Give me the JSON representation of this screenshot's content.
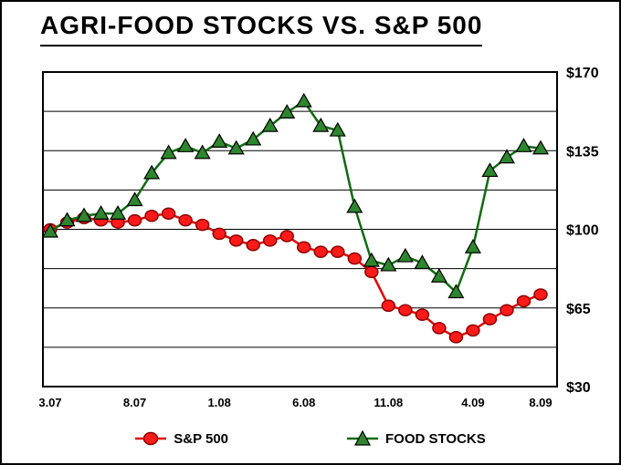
{
  "chart_data": {
    "type": "line",
    "title": "AGRI-FOOD STOCKS VS. S&P 500",
    "x": [
      "3.07",
      "4.07",
      "5.07",
      "6.07",
      "7.07",
      "8.07",
      "9.07",
      "10.07",
      "11.07",
      "12.07",
      "1.08",
      "2.08",
      "3.08",
      "4.08",
      "5.08",
      "6.08",
      "7.08",
      "8.08",
      "9.08",
      "10.08",
      "11.08",
      "12.08",
      "1.09",
      "2.09",
      "3.09",
      "4.09",
      "5.09",
      "6.09",
      "7.09",
      "8.09"
    ],
    "x_tick_labels": [
      "3.07",
      "8.07",
      "1.08",
      "6.08",
      "11.08",
      "4.09",
      "8.09"
    ],
    "x_tick_indices": [
      0,
      5,
      10,
      15,
      20,
      25,
      29
    ],
    "ylim": [
      30,
      170
    ],
    "y_grid_step": 17.5,
    "y_tick_values": [
      170,
      135,
      100,
      65,
      30
    ],
    "y_tick_labels": [
      "$170",
      "$135",
      "$100",
      "$65",
      "$30"
    ],
    "y_axis_side": "right",
    "grid": "horizontal",
    "axis_color": "#000000",
    "background_color": "#ffffff",
    "legend_position": "bottom-center",
    "series": [
      {
        "name": "S&P 500",
        "marker": "circle",
        "line_color": "#e60000",
        "marker_fill": "#ff1a1a",
        "marker_stroke": "#8b0000",
        "values": [
          100,
          103,
          105,
          104,
          103,
          104,
          106,
          107,
          104,
          102,
          98,
          95,
          93,
          95,
          97,
          92,
          90,
          90,
          87,
          81,
          66,
          64,
          62,
          56,
          52,
          55,
          60,
          64,
          68,
          71
        ]
      },
      {
        "name": "FOOD STOCKS",
        "marker": "triangle",
        "line_color": "#0f6b0f",
        "marker_fill": "#2d862d",
        "marker_stroke": "#000000",
        "values": [
          99,
          104,
          106,
          107,
          107,
          113,
          125,
          134,
          137,
          134,
          139,
          136,
          140,
          146,
          152,
          157,
          146,
          144,
          110,
          86,
          84,
          88,
          85,
          79,
          72,
          92,
          126,
          132,
          137,
          136
        ]
      }
    ]
  }
}
